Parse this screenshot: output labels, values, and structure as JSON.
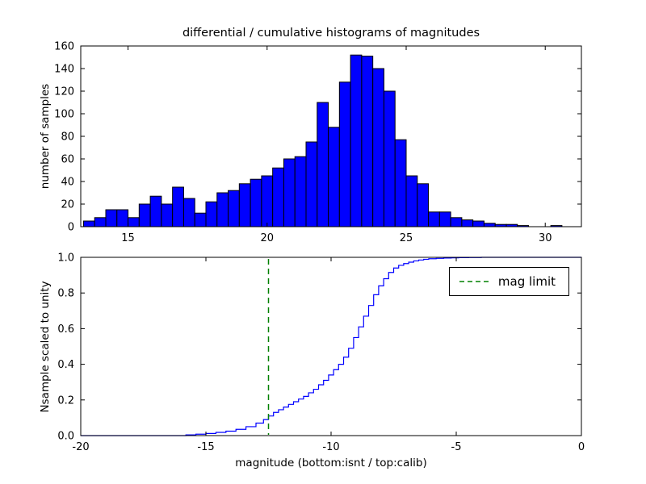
{
  "chart_data": [
    {
      "type": "bar",
      "title": "differential / cumulative histograms of magnitudes",
      "ylabel": "number of samples",
      "xlim": [
        13.3,
        31.3
      ],
      "ylim": [
        0,
        160
      ],
      "xticks": [
        "15",
        "20",
        "25",
        "30"
      ],
      "yticks": [
        "0",
        "20",
        "40",
        "60",
        "80",
        "100",
        "120",
        "140",
        "160"
      ],
      "grid": "off",
      "bar_color": "#0000ff",
      "bar_edge_color": "#000000",
      "bins": {
        "start": 13.4,
        "width": 0.4
      },
      "values": [
        5,
        8,
        15,
        15,
        8,
        20,
        27,
        20,
        35,
        25,
        12,
        22,
        30,
        32,
        38,
        42,
        45,
        52,
        60,
        62,
        75,
        110,
        88,
        128,
        152,
        151,
        140,
        120,
        77,
        45,
        38,
        13,
        13,
        8,
        6,
        5,
        3,
        2,
        2,
        1,
        0,
        0,
        1,
        0
      ]
    },
    {
      "type": "line",
      "step": true,
      "xlabel": "magnitude (bottom:isnt / top:calib)",
      "ylabel": "Nsample scaled to unity",
      "xlim": [
        -20,
        0
      ],
      "ylim": [
        0,
        1.0
      ],
      "xticks": [
        "-20",
        "-15",
        "-10",
        "-5",
        "0"
      ],
      "yticks": [
        "0.0",
        "0.2",
        "0.4",
        "0.6",
        "0.8",
        "1.0"
      ],
      "grid": "off",
      "line_color": "#0000ff",
      "points": [
        [
          -20,
          0
        ],
        [
          -15.8,
          0.004
        ],
        [
          -15.4,
          0.008
        ],
        [
          -15.0,
          0.012
        ],
        [
          -14.6,
          0.018
        ],
        [
          -14.2,
          0.025
        ],
        [
          -13.8,
          0.035
        ],
        [
          -13.4,
          0.05
        ],
        [
          -13.0,
          0.07
        ],
        [
          -12.7,
          0.09
        ],
        [
          -12.5,
          0.11
        ],
        [
          -12.3,
          0.13
        ],
        [
          -12.1,
          0.145
        ],
        [
          -11.9,
          0.16
        ],
        [
          -11.7,
          0.175
        ],
        [
          -11.5,
          0.19
        ],
        [
          -11.3,
          0.205
        ],
        [
          -11.1,
          0.22
        ],
        [
          -10.9,
          0.24
        ],
        [
          -10.7,
          0.26
        ],
        [
          -10.5,
          0.285
        ],
        [
          -10.3,
          0.31
        ],
        [
          -10.1,
          0.34
        ],
        [
          -9.9,
          0.37
        ],
        [
          -9.7,
          0.4
        ],
        [
          -9.5,
          0.44
        ],
        [
          -9.3,
          0.49
        ],
        [
          -9.1,
          0.55
        ],
        [
          -8.9,
          0.61
        ],
        [
          -8.7,
          0.67
        ],
        [
          -8.5,
          0.73
        ],
        [
          -8.3,
          0.79
        ],
        [
          -8.1,
          0.84
        ],
        [
          -7.9,
          0.88
        ],
        [
          -7.7,
          0.915
        ],
        [
          -7.5,
          0.94
        ],
        [
          -7.3,
          0.955
        ],
        [
          -7.1,
          0.965
        ],
        [
          -6.9,
          0.973
        ],
        [
          -6.7,
          0.98
        ],
        [
          -6.5,
          0.985
        ],
        [
          -6.3,
          0.989
        ],
        [
          -6.1,
          0.992
        ],
        [
          -5.8,
          0.994
        ],
        [
          -5.5,
          0.996
        ],
        [
          -5.2,
          0.997
        ],
        [
          -4.9,
          0.998
        ],
        [
          -4.5,
          0.999
        ],
        [
          -4.0,
          1.0
        ],
        [
          0,
          1.0
        ]
      ],
      "vline": {
        "x": -12.5,
        "color": "#008000",
        "style": "dashed",
        "label": "mag limit"
      },
      "legend": {
        "position": "upper right",
        "entries": [
          {
            "label": "mag limit",
            "color": "#008000",
            "style": "dashed"
          }
        ]
      }
    }
  ]
}
